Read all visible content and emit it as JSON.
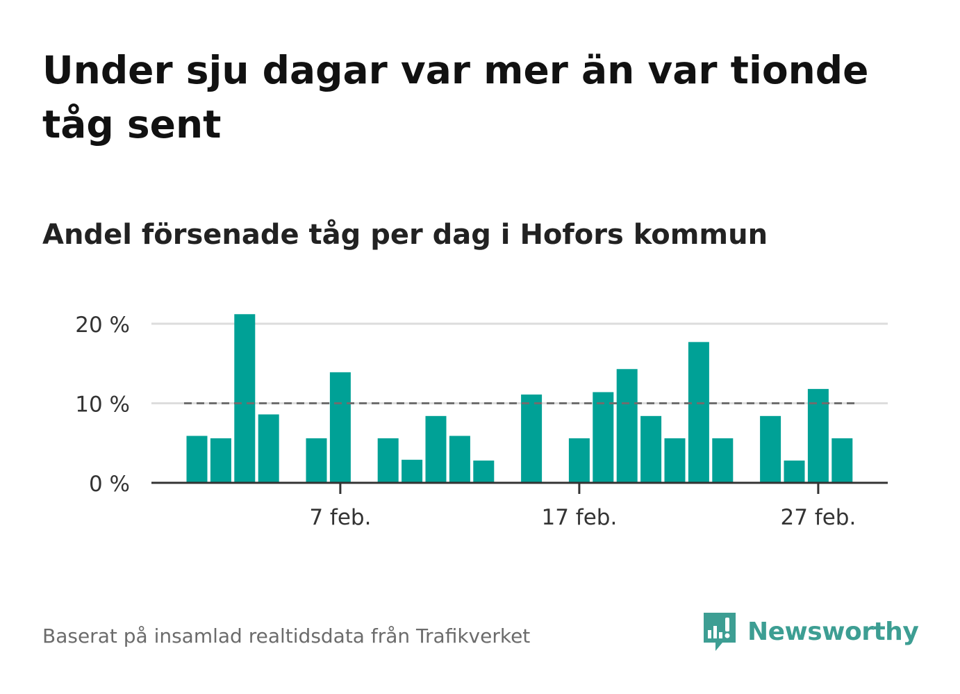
{
  "title": "Under sju dagar var mer än var tionde tåg sent",
  "subtitle": "Andel försenade tåg per dag i Hofors kommun",
  "footer": "Baserat på insamlad realtidsdata från Trafikverket",
  "logo": {
    "text": "Newsworthy",
    "icon": "newsworthy-logo-icon"
  },
  "colors": {
    "bar": "#00a196",
    "grid": "#dddddd",
    "axis": "#333333",
    "reference": "#6e6e6e",
    "logo": "#3d9e93"
  },
  "chart_data": {
    "type": "bar",
    "x": [
      "2024-02-01",
      "2024-02-02",
      "2024-02-03",
      "2024-02-04",
      "2024-02-05",
      "2024-02-06",
      "2024-02-07",
      "2024-02-08",
      "2024-02-09",
      "2024-02-10",
      "2024-02-11",
      "2024-02-12",
      "2024-02-13",
      "2024-02-14",
      "2024-02-15",
      "2024-02-16",
      "2024-02-17",
      "2024-02-18",
      "2024-02-19",
      "2024-02-20",
      "2024-02-21",
      "2024-02-22",
      "2024-02-23",
      "2024-02-24",
      "2024-02-25",
      "2024-02-26",
      "2024-02-27",
      "2024-02-28",
      "2024-02-29"
    ],
    "values": [
      5.9,
      5.6,
      21.2,
      8.6,
      null,
      5.6,
      13.9,
      null,
      5.6,
      2.9,
      8.4,
      5.9,
      2.8,
      null,
      11.1,
      null,
      5.6,
      11.4,
      14.3,
      8.4,
      5.6,
      17.7,
      5.6,
      null,
      8.4,
      2.8,
      11.8,
      5.6,
      null
    ],
    "reference_line": 10,
    "ylim": [
      0,
      22
    ],
    "yticks": [
      0,
      10,
      20
    ],
    "ytick_labels": [
      "0 %",
      "10 %",
      "20 %"
    ],
    "xticks": [
      "2024-02-07",
      "2024-02-17",
      "2024-02-27"
    ],
    "xtick_labels": [
      "7 feb.",
      "17 feb.",
      "27 feb."
    ],
    "grid": true,
    "legend": false
  }
}
